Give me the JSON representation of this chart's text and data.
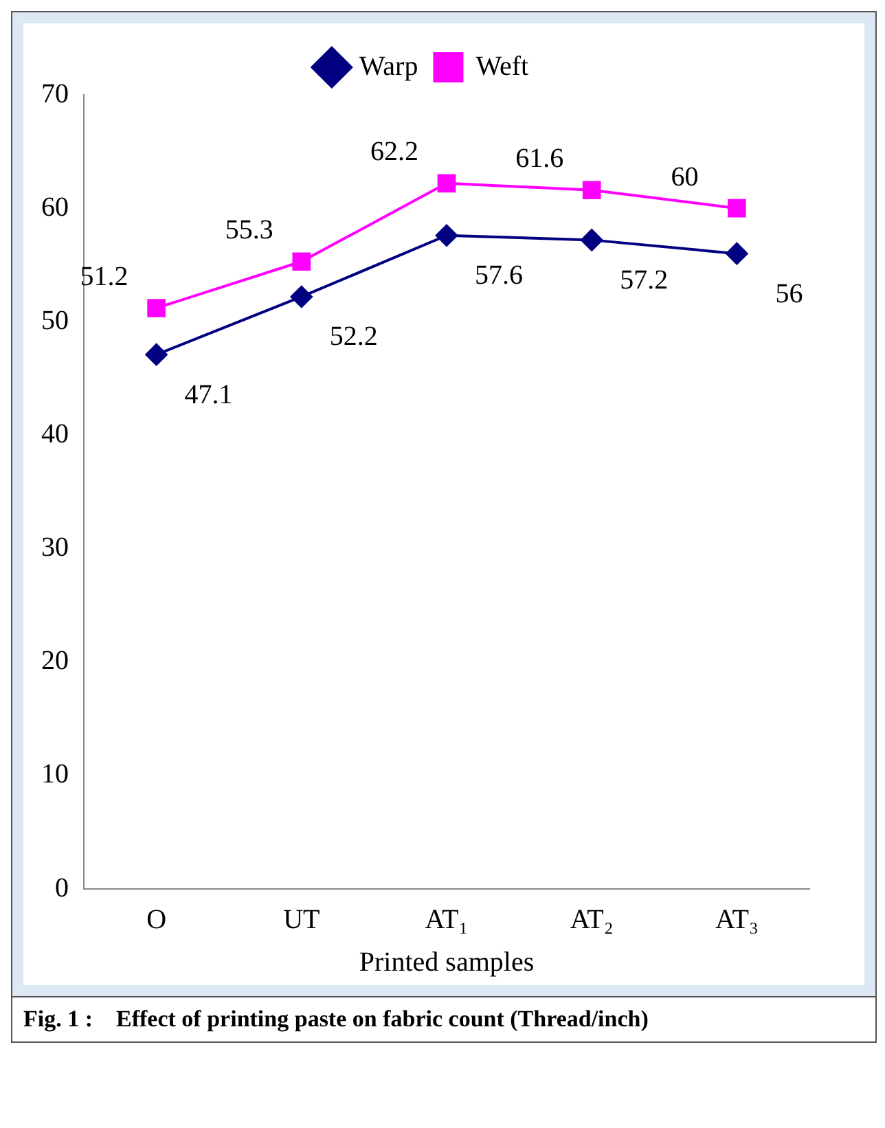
{
  "chart_data": {
    "type": "line",
    "title": "Fig. 1 :    Effect of printing paste on fabric count (Thread/inch)",
    "xlabel": "Printed samples",
    "categories": [
      "O",
      "UT",
      "AT₁",
      "AT₂",
      "AT₃"
    ],
    "series": [
      {
        "name": "Warp",
        "color": "#000080",
        "marker": "diamond",
        "values": [
          47.1,
          52.2,
          57.6,
          57.2,
          56
        ]
      },
      {
        "name": "Weft",
        "color": "#ff00ff",
        "marker": "square",
        "values": [
          51.2,
          55.3,
          62.2,
          61.6,
          60
        ]
      }
    ],
    "ylim": [
      0,
      70
    ],
    "yticks": [
      0,
      10,
      20,
      30,
      40,
      50,
      60,
      70
    ],
    "grid": false,
    "legend": "top",
    "data_labels": true
  }
}
